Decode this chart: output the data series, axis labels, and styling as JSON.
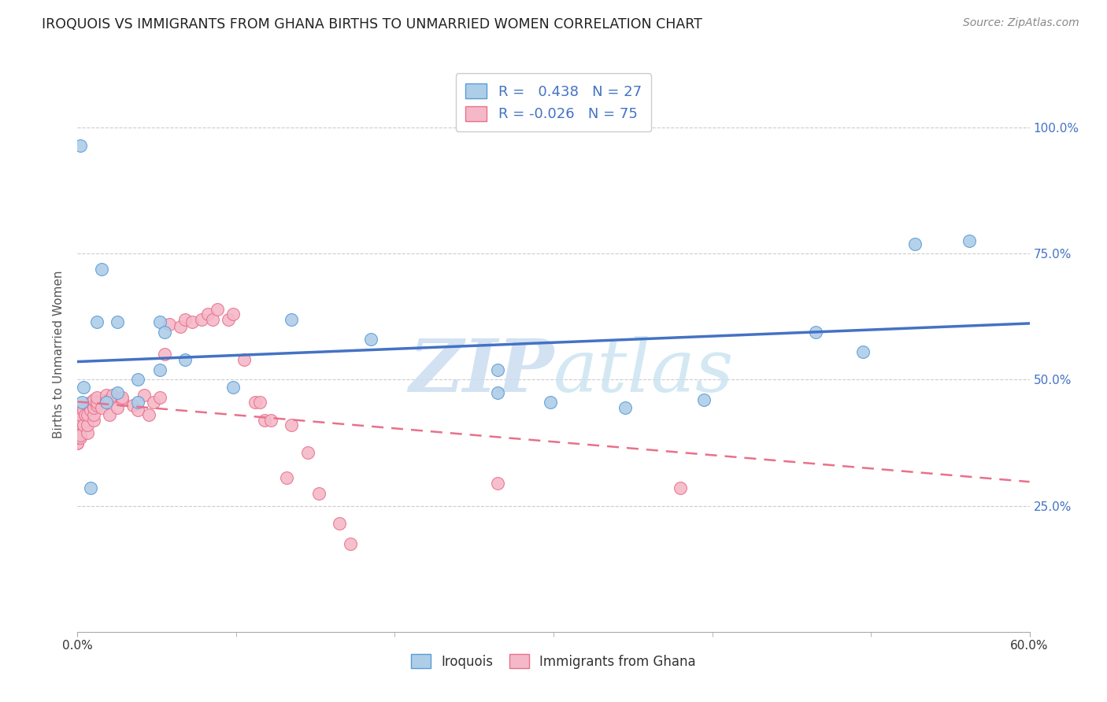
{
  "title": "IROQUOIS VS IMMIGRANTS FROM GHANA BIRTHS TO UNMARRIED WOMEN CORRELATION CHART",
  "source": "Source: ZipAtlas.com",
  "ylabel": "Births to Unmarried Women",
  "ytick_labels": [
    "25.0%",
    "50.0%",
    "75.0%",
    "100.0%"
  ],
  "ytick_values": [
    0.25,
    0.5,
    0.75,
    1.0
  ],
  "xmin": 0.0,
  "xmax": 0.6,
  "ymin": 0.0,
  "ymax": 1.1,
  "legend_iroquois": "Iroquois",
  "legend_ghana": "Immigrants from Ghana",
  "R_iroquois": 0.438,
  "N_iroquois": 27,
  "R_ghana": -0.026,
  "N_ghana": 75,
  "color_iroquois": "#aecde8",
  "color_ghana": "#f5b8c8",
  "color_iroquois_edge": "#5b9bd5",
  "color_ghana_edge": "#e8718a",
  "color_iroquois_line": "#4472c4",
  "color_ghana_line": "#e8718a",
  "watermark_zip": "ZIP",
  "watermark_atlas": "atlas",
  "iroquois_x": [
    0.002,
    0.003,
    0.004,
    0.008,
    0.012,
    0.015,
    0.018,
    0.025,
    0.025,
    0.038,
    0.038,
    0.052,
    0.052,
    0.055,
    0.068,
    0.098,
    0.135,
    0.185,
    0.265,
    0.265,
    0.298,
    0.345,
    0.395,
    0.465,
    0.495,
    0.528,
    0.562
  ],
  "iroquois_y": [
    0.965,
    0.455,
    0.485,
    0.285,
    0.615,
    0.72,
    0.455,
    0.475,
    0.615,
    0.455,
    0.5,
    0.52,
    0.615,
    0.595,
    0.54,
    0.485,
    0.62,
    0.58,
    0.52,
    0.475,
    0.455,
    0.445,
    0.46,
    0.595,
    0.555,
    0.77,
    0.775
  ],
  "ghana_x": [
    0.0,
    0.0,
    0.0,
    0.0,
    0.0,
    0.0,
    0.0,
    0.0,
    0.0,
    0.0,
    0.0,
    0.0,
    0.0,
    0.0,
    0.0,
    0.0,
    0.002,
    0.002,
    0.002,
    0.002,
    0.002,
    0.004,
    0.004,
    0.005,
    0.006,
    0.006,
    0.006,
    0.008,
    0.008,
    0.01,
    0.01,
    0.01,
    0.01,
    0.012,
    0.012,
    0.012,
    0.015,
    0.018,
    0.018,
    0.02,
    0.02,
    0.022,
    0.025,
    0.028,
    0.028,
    0.035,
    0.038,
    0.042,
    0.045,
    0.048,
    0.052,
    0.055,
    0.058,
    0.065,
    0.068,
    0.072,
    0.078,
    0.082,
    0.085,
    0.088,
    0.095,
    0.098,
    0.105,
    0.112,
    0.115,
    0.118,
    0.122,
    0.132,
    0.135,
    0.145,
    0.152,
    0.165,
    0.172,
    0.265,
    0.38
  ],
  "ghana_y": [
    0.375,
    0.375,
    0.385,
    0.39,
    0.395,
    0.395,
    0.4,
    0.4,
    0.41,
    0.415,
    0.415,
    0.42,
    0.425,
    0.43,
    0.435,
    0.44,
    0.385,
    0.39,
    0.42,
    0.43,
    0.445,
    0.41,
    0.44,
    0.43,
    0.395,
    0.41,
    0.43,
    0.44,
    0.455,
    0.42,
    0.43,
    0.445,
    0.46,
    0.45,
    0.455,
    0.465,
    0.445,
    0.46,
    0.47,
    0.43,
    0.46,
    0.47,
    0.445,
    0.46,
    0.465,
    0.45,
    0.44,
    0.47,
    0.43,
    0.455,
    0.465,
    0.55,
    0.61,
    0.605,
    0.62,
    0.615,
    0.62,
    0.63,
    0.62,
    0.64,
    0.62,
    0.63,
    0.54,
    0.455,
    0.455,
    0.42,
    0.42,
    0.305,
    0.41,
    0.355,
    0.275,
    0.215,
    0.175,
    0.295,
    0.285
  ]
}
